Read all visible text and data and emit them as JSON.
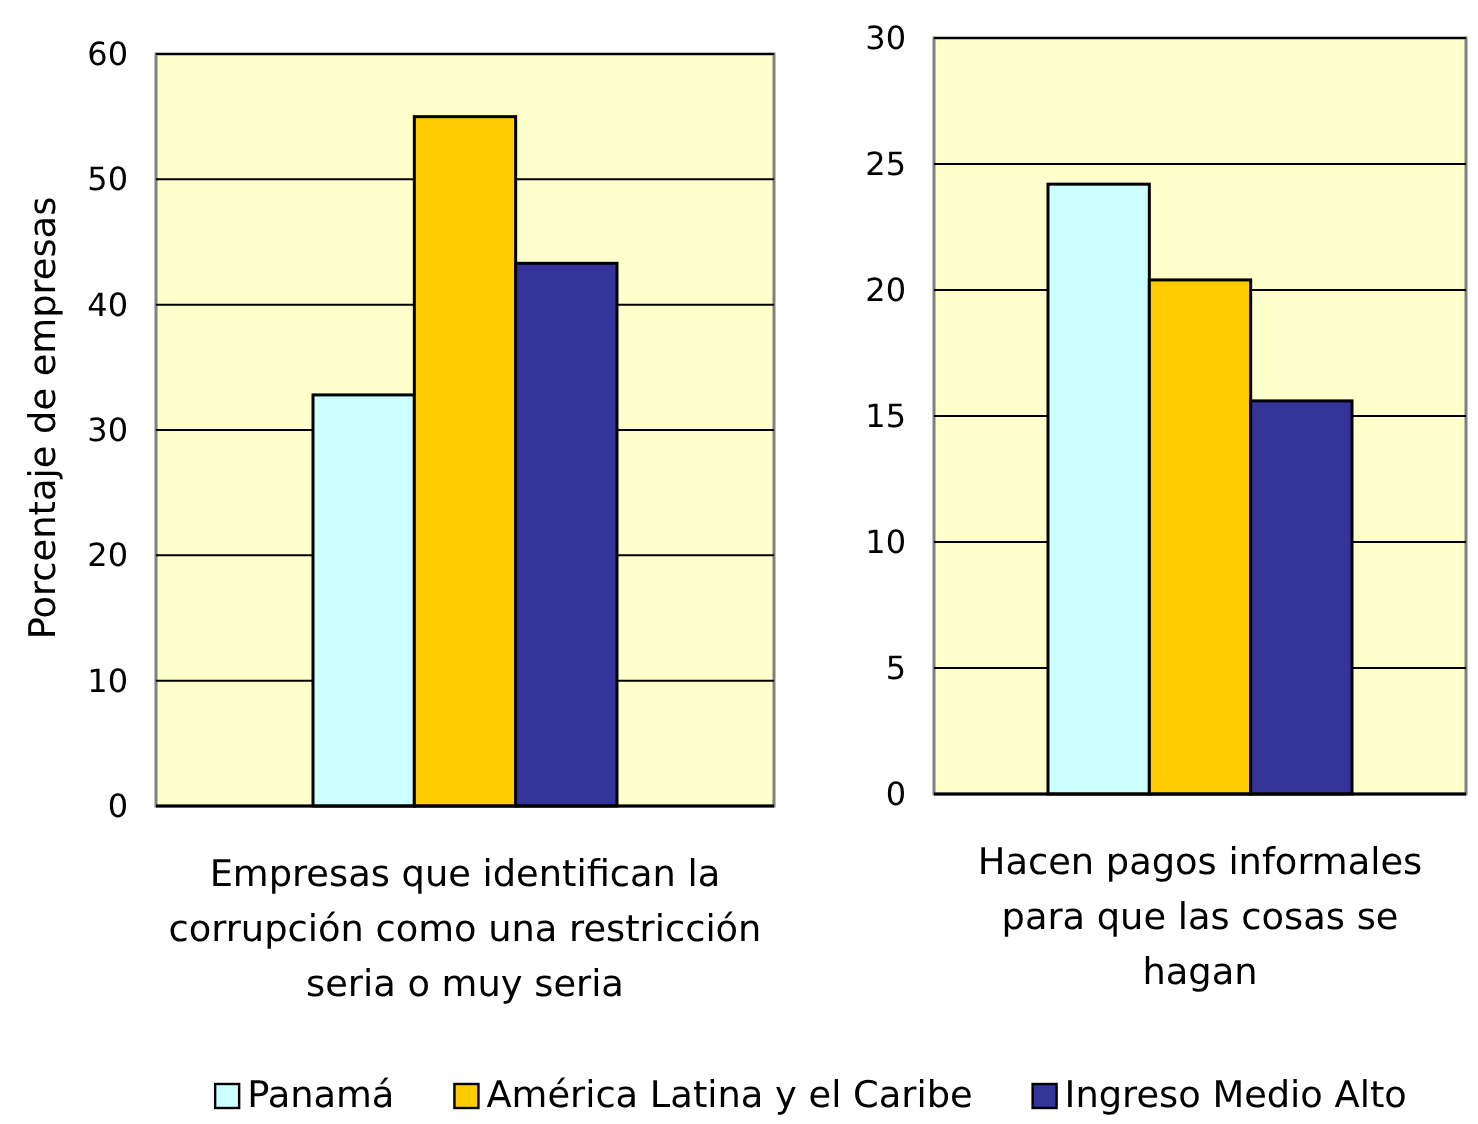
{
  "chart_data": [
    {
      "type": "bar",
      "ylabel": "Porcentaje de empresas",
      "categories": [
        "Empresas que identifican la corrupción como una restricción seria o muy seria"
      ],
      "series": [
        {
          "name": "Panamá",
          "color": "#ccffff",
          "values": [
            32.8
          ]
        },
        {
          "name": "América Latina y el Caribe",
          "color": "#ffcc00",
          "values": [
            55.0
          ]
        },
        {
          "name": "Ingreso Medio Alto",
          "color": "#333399",
          "values": [
            43.3
          ]
        }
      ],
      "ylim": [
        0,
        60
      ],
      "yticks": [
        0,
        10,
        20,
        30,
        40,
        50,
        60
      ],
      "grid": "y",
      "legend": "bottom"
    },
    {
      "type": "bar",
      "categories": [
        "Hacen pagos informales para que las cosas se hagan"
      ],
      "series": [
        {
          "color": "#ccffff",
          "values": [
            24.2
          ]
        },
        {
          "color": "#ffcc00",
          "values": [
            20.4
          ]
        },
        {
          "color": "#333399",
          "values": [
            15.6
          ]
        }
      ],
      "ylim": [
        0,
        30
      ],
      "yticks": [
        0,
        5,
        10,
        15,
        20,
        25,
        30
      ],
      "grid": "y"
    }
  ]
}
